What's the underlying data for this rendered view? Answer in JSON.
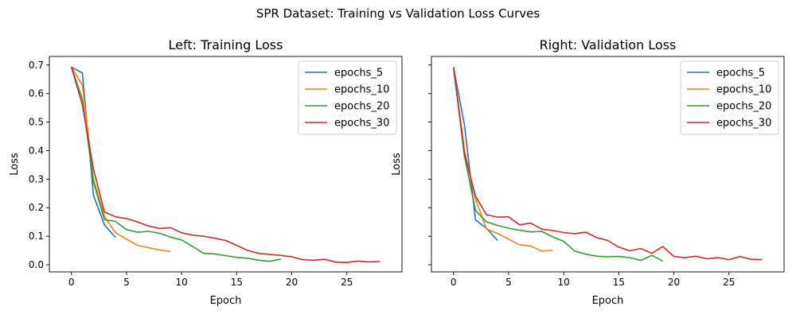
{
  "figure_title": "SPR Dataset: Training vs Validation Loss Curves",
  "chart_data": [
    {
      "type": "line",
      "title": "Left: Training Loss",
      "xlabel": "Epoch",
      "ylabel": "Loss",
      "xlim": [
        -2,
        30
      ],
      "ylim": [
        -0.025,
        0.73
      ],
      "xticks": [
        0,
        5,
        10,
        15,
        20,
        25
      ],
      "yticks": [
        0.0,
        0.1,
        0.2,
        0.3,
        0.4,
        0.5,
        0.6,
        0.7
      ],
      "ytick_labels": [
        "0.0",
        "0.1",
        "0.2",
        "0.3",
        "0.4",
        "0.5",
        "0.6",
        "0.7"
      ],
      "grid": false,
      "legend_position": "top-right",
      "series": [
        {
          "name": "epochs_5",
          "color": "#1f77b4",
          "x": [
            0,
            1,
            2,
            3,
            4
          ],
          "y": [
            0.693,
            0.672,
            0.243,
            0.14,
            0.096
          ]
        },
        {
          "name": "epochs_10",
          "color": "#ff7f0e",
          "x": [
            0,
            1,
            2,
            3,
            4,
            5,
            6,
            7,
            8,
            9
          ],
          "y": [
            0.693,
            0.63,
            0.3,
            0.17,
            0.112,
            0.09,
            0.068,
            0.06,
            0.052,
            0.047
          ]
        },
        {
          "name": "epochs_20",
          "color": "#2ca02c",
          "x": [
            0,
            1,
            2,
            3,
            4,
            5,
            6,
            7,
            8,
            9,
            10,
            11,
            12,
            13,
            14,
            15,
            16,
            17,
            18,
            19
          ],
          "y": [
            0.693,
            0.58,
            0.29,
            0.158,
            0.152,
            0.123,
            0.114,
            0.117,
            0.11,
            0.097,
            0.087,
            0.064,
            0.04,
            0.038,
            0.032,
            0.026,
            0.023,
            0.016,
            0.012,
            0.02
          ]
        },
        {
          "name": "epochs_30",
          "color": "#d62728",
          "x": [
            0,
            1,
            2,
            3,
            4,
            5,
            6,
            7,
            8,
            9,
            10,
            11,
            12,
            13,
            14,
            15,
            16,
            17,
            18,
            19,
            20,
            21,
            22,
            23,
            24,
            25,
            26,
            27,
            28
          ],
          "y": [
            0.693,
            0.56,
            0.335,
            0.185,
            0.168,
            0.162,
            0.15,
            0.136,
            0.127,
            0.13,
            0.112,
            0.104,
            0.1,
            0.093,
            0.085,
            0.068,
            0.05,
            0.04,
            0.036,
            0.033,
            0.028,
            0.018,
            0.016,
            0.019,
            0.009,
            0.008,
            0.013,
            0.01,
            0.011
          ]
        }
      ]
    },
    {
      "type": "line",
      "title": "Right: Validation Loss",
      "xlabel": "Epoch",
      "ylabel": "Loss",
      "xlim": [
        -2,
        30
      ],
      "ylim": [
        -0.025,
        0.73
      ],
      "xticks": [
        0,
        5,
        10,
        15,
        20,
        25
      ],
      "yticks": [
        0.0,
        0.1,
        0.2,
        0.3,
        0.4,
        0.5,
        0.6,
        0.7
      ],
      "ytick_labels": [
        "",
        "",
        "",
        "",
        "",
        "",
        "",
        ""
      ],
      "grid": false,
      "legend_position": "top-right",
      "series": [
        {
          "name": "epochs_5",
          "color": "#1f77b4",
          "x": [
            0,
            1,
            2,
            3,
            4
          ],
          "y": [
            0.692,
            0.49,
            0.157,
            0.128,
            0.085
          ]
        },
        {
          "name": "epochs_10",
          "color": "#ff7f0e",
          "x": [
            0,
            1,
            2,
            3,
            4,
            5,
            6,
            7,
            8,
            9
          ],
          "y": [
            0.692,
            0.4,
            0.23,
            0.125,
            0.11,
            0.09,
            0.07,
            0.066,
            0.048,
            0.05
          ]
        },
        {
          "name": "epochs_20",
          "color": "#2ca02c",
          "x": [
            0,
            1,
            2,
            3,
            4,
            5,
            6,
            7,
            8,
            9,
            10,
            11,
            12,
            13,
            14,
            15,
            16,
            17,
            18,
            19
          ],
          "y": [
            0.692,
            0.38,
            0.19,
            0.15,
            0.138,
            0.128,
            0.121,
            0.115,
            0.117,
            0.098,
            0.082,
            0.048,
            0.037,
            0.03,
            0.028,
            0.029,
            0.025,
            0.015,
            0.033,
            0.013
          ]
        },
        {
          "name": "epochs_30",
          "color": "#d62728",
          "x": [
            0,
            1,
            2,
            3,
            4,
            5,
            6,
            7,
            8,
            9,
            10,
            11,
            12,
            13,
            14,
            15,
            16,
            17,
            18,
            19,
            20,
            21,
            22,
            23,
            24,
            25,
            26,
            27,
            28
          ],
          "y": [
            0.692,
            0.39,
            0.24,
            0.175,
            0.167,
            0.168,
            0.14,
            0.146,
            0.125,
            0.12,
            0.113,
            0.109,
            0.114,
            0.095,
            0.085,
            0.062,
            0.049,
            0.057,
            0.04,
            0.064,
            0.029,
            0.025,
            0.03,
            0.021,
            0.025,
            0.018,
            0.029,
            0.019,
            0.018
          ]
        }
      ]
    }
  ]
}
